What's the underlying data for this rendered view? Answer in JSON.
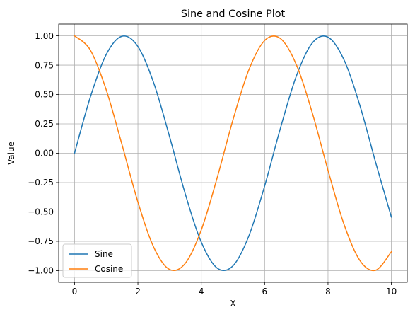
{
  "chart_data": {
    "type": "line",
    "title": "Sine and Cosine Plot",
    "xlabel": "X",
    "ylabel": "Value",
    "xlim": [
      -0.5,
      10.5
    ],
    "ylim": [
      -1.1,
      1.1
    ],
    "xticks": [
      0,
      2,
      4,
      6,
      8,
      10
    ],
    "xtick_labels": [
      "0",
      "2",
      "4",
      "6",
      "8",
      "10"
    ],
    "yticks": [
      1.0,
      0.75,
      0.5,
      0.25,
      0.0,
      -0.25,
      -0.5,
      -0.75,
      -1.0
    ],
    "ytick_labels": [
      "1.00",
      "0.75",
      "0.50",
      "0.25",
      "0.00",
      "−0.25",
      "−0.50",
      "−0.75",
      "−1.00"
    ],
    "grid": true,
    "legend_position": "lower-left",
    "series": [
      {
        "name": "Sine",
        "color": "#1f77b4",
        "x": [
          0,
          0.5,
          1,
          1.5,
          2,
          2.5,
          3,
          3.5,
          4,
          4.5,
          5,
          5.5,
          6,
          6.5,
          7,
          7.5,
          8,
          8.5,
          9,
          9.5,
          10
        ],
        "y": [
          0.0,
          0.479,
          0.841,
          0.997,
          0.909,
          0.598,
          0.141,
          -0.351,
          -0.757,
          -0.978,
          -0.959,
          -0.706,
          -0.279,
          0.215,
          0.657,
          0.938,
          0.989,
          0.798,
          0.412,
          -0.075,
          -0.544
        ]
      },
      {
        "name": "Cosine",
        "color": "#ff7f0e",
        "x": [
          0,
          0.5,
          1,
          1.5,
          2,
          2.5,
          3,
          3.5,
          4,
          4.5,
          5,
          5.5,
          6,
          6.5,
          7,
          7.5,
          8,
          8.5,
          9,
          9.5,
          10
        ],
        "y": [
          1.0,
          0.878,
          0.54,
          0.071,
          -0.416,
          -0.801,
          -0.99,
          -0.936,
          -0.654,
          -0.211,
          0.284,
          0.709,
          0.96,
          0.977,
          0.754,
          0.347,
          -0.146,
          -0.602,
          -0.911,
          -0.997,
          -0.839
        ]
      }
    ]
  }
}
